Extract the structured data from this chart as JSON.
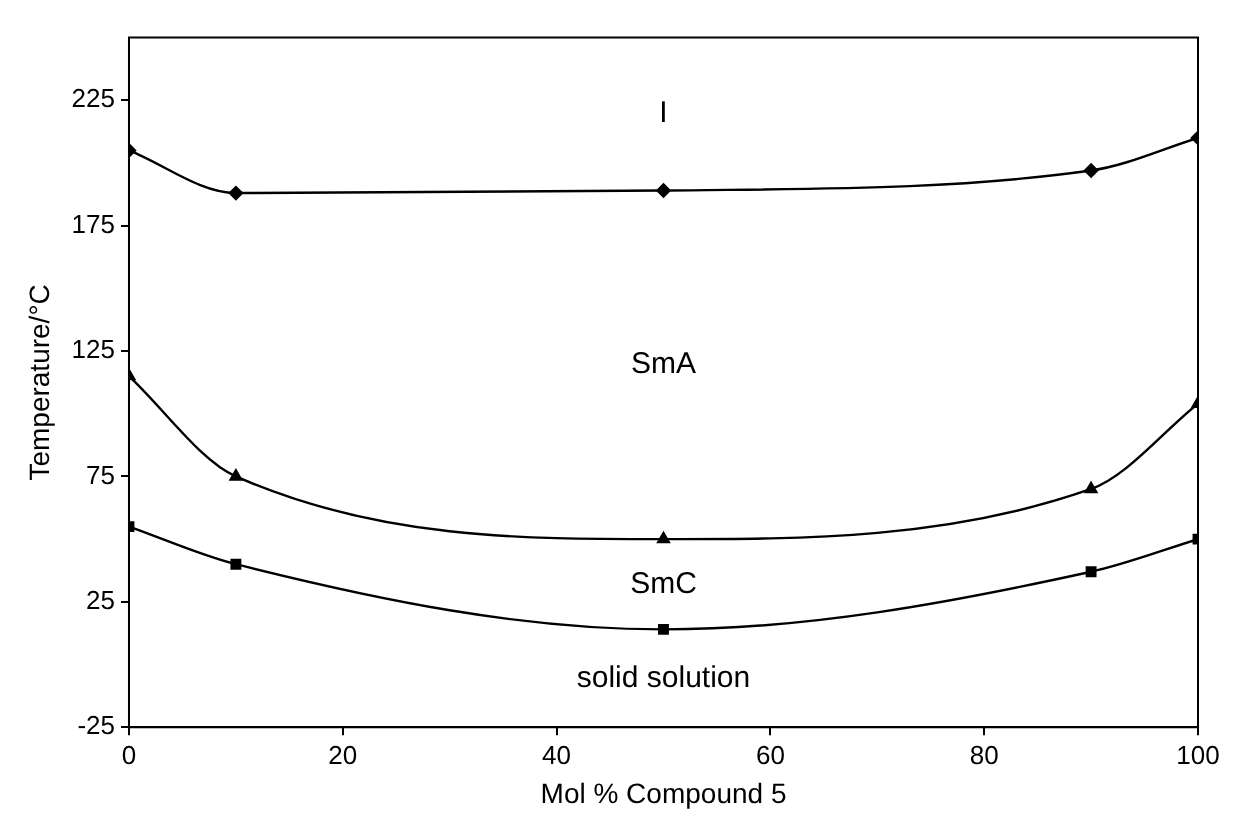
{
  "chart_data": {
    "type": "line",
    "xlabel": "Mol % Compound 5",
    "ylabel": "Temperature/°C",
    "x": [
      0,
      10,
      50,
      90,
      100
    ],
    "series": [
      {
        "color": "#000000",
        "marker": "diamond",
        "values": [
          205,
          188,
          189,
          197,
          210
        ]
      },
      {
        "color": "#000000",
        "marker": "triangle",
        "values": [
          115,
          75,
          50,
          70,
          104
        ]
      },
      {
        "color": "#000000",
        "marker": "square",
        "values": [
          55,
          40,
          14,
          37,
          50
        ]
      }
    ],
    "xlim": [
      0,
      100
    ],
    "xticks": [
      0,
      20,
      40,
      60,
      80,
      100
    ],
    "ylim": [
      -25,
      250
    ],
    "yticks": [
      -25,
      25,
      75,
      125,
      175,
      225
    ],
    "grid": false,
    "legend": false,
    "line_style": "solid",
    "annotations": [
      "I",
      "SmA",
      "SmC",
      "solid solution"
    ]
  }
}
